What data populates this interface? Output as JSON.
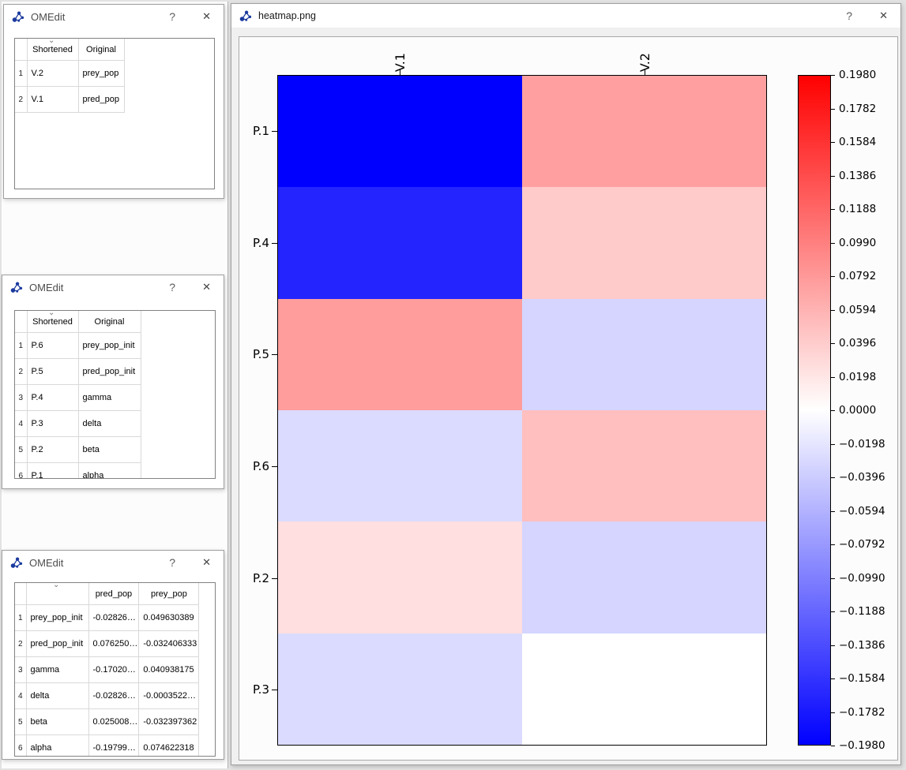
{
  "chrome": {
    "help": "?",
    "close": "✕",
    "sort_indicator": "⌄"
  },
  "mapping_vars_window": {
    "title": "OMEdit",
    "table": {
      "headers": [
        "",
        "Shortened",
        "Original"
      ],
      "rows": [
        [
          "1",
          "V.2",
          "prey_pop"
        ],
        [
          "2",
          "V.1",
          "pred_pop"
        ]
      ]
    }
  },
  "mapping_params_window": {
    "title": "OMEdit",
    "table": {
      "headers": [
        "",
        "Shortened",
        "Original"
      ],
      "rows": [
        [
          "1",
          "P.6",
          "prey_pop_init"
        ],
        [
          "2",
          "P.5",
          "pred_pop_init"
        ],
        [
          "3",
          "P.4",
          "gamma"
        ],
        [
          "4",
          "P.3",
          "delta"
        ],
        [
          "5",
          "P.2",
          "beta"
        ],
        [
          "6",
          "P.1",
          "alpha"
        ]
      ]
    }
  },
  "sensitivities_window": {
    "title": "OMEdit",
    "table": {
      "headers": [
        "",
        "",
        "pred_pop",
        "prey_pop"
      ],
      "rows": [
        [
          "1",
          "prey_pop_init",
          "-0.02826…",
          "0.049630389"
        ],
        [
          "2",
          "pred_pop_init",
          "0.076250…",
          "-0.032406333"
        ],
        [
          "3",
          "gamma",
          "-0.17020…",
          "0.040938175"
        ],
        [
          "4",
          "delta",
          "-0.02826…",
          "-0.0003522…"
        ],
        [
          "5",
          "beta",
          "0.025008…",
          "-0.032397362"
        ],
        [
          "6",
          "alpha",
          "-0.19799…",
          "0.074622318"
        ]
      ]
    }
  },
  "heatmap_window": {
    "title": "heatmap.png"
  },
  "chart_data": {
    "type": "heatmap",
    "title": "",
    "columns": [
      "V.1",
      "V.2"
    ],
    "rows": [
      "P.1",
      "P.4",
      "P.5",
      "P.6",
      "P.2",
      "P.3"
    ],
    "values": [
      [
        -0.19799,
        0.074622318
      ],
      [
        -0.1702,
        0.040938175
      ],
      [
        0.07625,
        -0.032406333
      ],
      [
        -0.02826,
        0.049630389
      ],
      [
        0.025008,
        -0.032397362
      ],
      [
        -0.02826,
        -0.0003522
      ]
    ],
    "colormap": "bwr",
    "vmin": -0.198,
    "vmax": 0.198,
    "colorbar_ticks": [
      "0.1980",
      "0.1782",
      "0.1584",
      "0.1386",
      "0.1188",
      "0.0990",
      "0.0792",
      "0.0594",
      "0.0396",
      "0.0198",
      "0.0000",
      "−0.0198",
      "−0.0396",
      "−0.0594",
      "−0.0792",
      "−0.0990",
      "−0.1188",
      "−0.1386",
      "−0.1584",
      "−0.1782",
      "−0.1980"
    ]
  }
}
